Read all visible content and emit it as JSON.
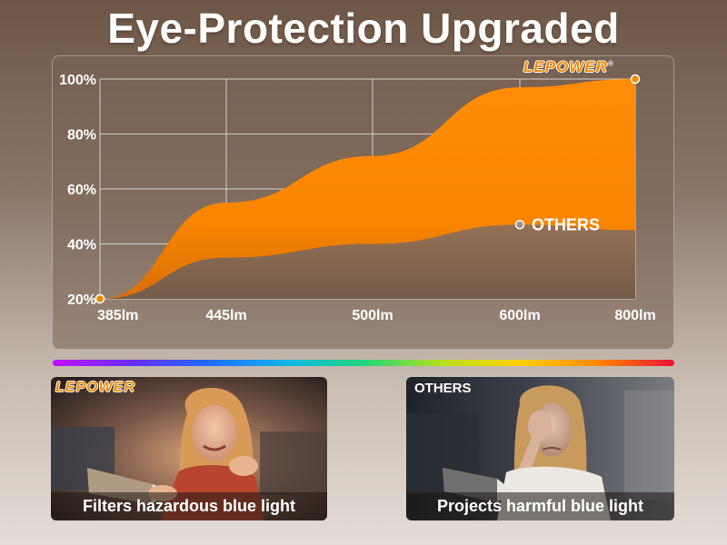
{
  "page": {
    "title": "Eye-Protection Upgraded",
    "brand": "LEPOWER",
    "brand_mark": "®",
    "accent_color": "#ff8a00"
  },
  "chart_data": {
    "type": "area",
    "x": [
      "385lm",
      "445lm",
      "500lm",
      "600lm",
      "800lm"
    ],
    "ylim": [
      20,
      100
    ],
    "y_ticks": [
      "100%",
      "80%",
      "60%",
      "40%",
      "20%"
    ],
    "grid": true,
    "series": [
      {
        "name": "LEPOWER",
        "color": "#ff8a00",
        "values": [
          20,
          55,
          72,
          97,
          100
        ]
      },
      {
        "name": "OTHERS",
        "color": "#7a6457",
        "values": [
          20,
          35,
          40,
          47,
          45
        ]
      }
    ],
    "annotations": {
      "others_label": "OTHERS"
    }
  },
  "spectrum": {
    "colors": [
      "#c013ff",
      "#6a2cff",
      "#1f6bff",
      "#10b5e8",
      "#1fd67c",
      "#b6e01b",
      "#ffd100",
      "#ff8a00",
      "#e8123a"
    ]
  },
  "cards": [
    {
      "caption": "Filters hazardous blue light",
      "brand": "LEPOWER"
    },
    {
      "caption": "Projects harmful blue light",
      "tag": "OTHERS"
    }
  ]
}
